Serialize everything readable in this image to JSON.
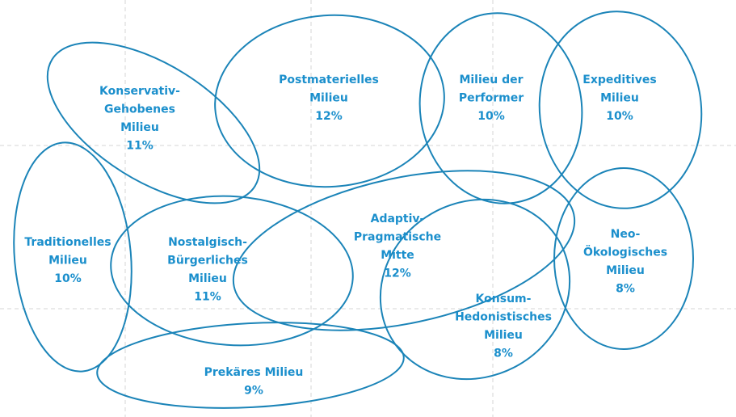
{
  "nodes": [
    {
      "label": [
        "Konservativ-",
        "Gehobenes",
        "Milieu"
      ],
      "share": "11%"
    },
    {
      "label": [
        "Postmaterielles",
        "Milieu"
      ],
      "share": "12%"
    },
    {
      "label": [
        "Milieu der",
        "Performer"
      ],
      "share": "10%"
    },
    {
      "label": [
        "Expeditives",
        "Milieu"
      ],
      "share": "10%"
    },
    {
      "label": [
        "Traditionelles",
        "Milieu"
      ],
      "share": "10%"
    },
    {
      "label": [
        "Nostalgisch-",
        "Bürgerliches",
        "Milieu"
      ],
      "share": "11%"
    },
    {
      "label": [
        "Adaptiv-",
        "Pragmatische",
        "Mitte"
      ],
      "share": "12%"
    },
    {
      "label": [
        "Neo-",
        "Ökologisches",
        "Milieu"
      ],
      "share": "8%"
    },
    {
      "label": [
        "Konsum-",
        "Hedonistisches",
        "Milieu"
      ],
      "share": "8%"
    },
    {
      "label": [
        "Prekäres Milieu"
      ],
      "share": "9%"
    }
  ]
}
